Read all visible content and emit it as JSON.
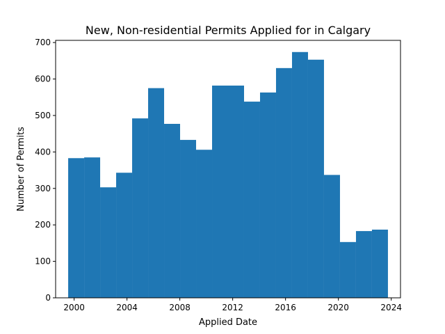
{
  "chart_data": {
    "type": "bar",
    "title": "New, Non-residential Permits Applied for in Calgary",
    "xlabel": "Applied Date",
    "ylabel": "Number of Permits",
    "bar_color": "#1f77b4",
    "grid": false,
    "legend": "none",
    "xlim": [
      1998.6,
      2024.7
    ],
    "ylim": [
      0,
      706
    ],
    "x_ticks": [
      2000,
      2004,
      2008,
      2012,
      2016,
      2020,
      2024
    ],
    "y_ticks": [
      0,
      100,
      200,
      300,
      400,
      500,
      600,
      700
    ],
    "bins": [
      {
        "start": 1999.55,
        "end": 2000.76,
        "value": 383
      },
      {
        "start": 2000.76,
        "end": 2001.97,
        "value": 385
      },
      {
        "start": 2001.97,
        "end": 2003.18,
        "value": 303
      },
      {
        "start": 2003.18,
        "end": 2004.39,
        "value": 343
      },
      {
        "start": 2004.39,
        "end": 2005.6,
        "value": 492
      },
      {
        "start": 2005.6,
        "end": 2006.81,
        "value": 575
      },
      {
        "start": 2006.81,
        "end": 2008.02,
        "value": 477
      },
      {
        "start": 2008.02,
        "end": 2009.23,
        "value": 433
      },
      {
        "start": 2009.23,
        "end": 2010.44,
        "value": 406
      },
      {
        "start": 2010.44,
        "end": 2011.65,
        "value": 582
      },
      {
        "start": 2011.65,
        "end": 2012.86,
        "value": 582
      },
      {
        "start": 2012.86,
        "end": 2014.07,
        "value": 538
      },
      {
        "start": 2014.07,
        "end": 2015.28,
        "value": 563
      },
      {
        "start": 2015.28,
        "end": 2016.49,
        "value": 630
      },
      {
        "start": 2016.49,
        "end": 2017.7,
        "value": 674
      },
      {
        "start": 2017.7,
        "end": 2018.91,
        "value": 653
      },
      {
        "start": 2018.91,
        "end": 2020.12,
        "value": 337
      },
      {
        "start": 2020.12,
        "end": 2021.33,
        "value": 153
      },
      {
        "start": 2021.33,
        "end": 2022.54,
        "value": 183
      },
      {
        "start": 2022.54,
        "end": 2023.75,
        "value": 187
      }
    ]
  }
}
